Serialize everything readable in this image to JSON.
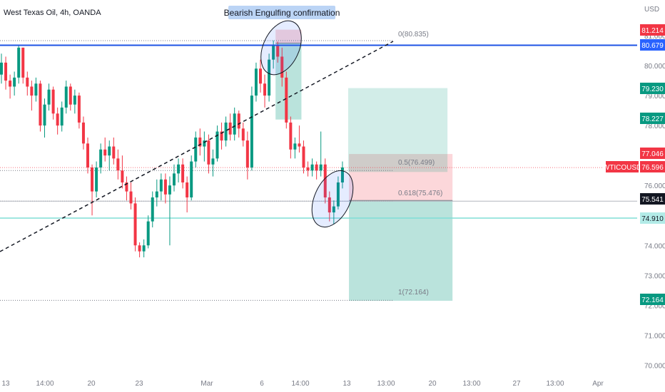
{
  "header": {
    "symbol_title": "West Texas Oil, 4h, OANDA"
  },
  "currency": "USD",
  "annotation": {
    "label": "Bearish Engulfing confirmation"
  },
  "fib_labels": {
    "level_0": "0(80.835)",
    "level_05": "0.5(76.499)",
    "level_0618": "0.618(75.476)",
    "level_1": "1(72.164)"
  },
  "price_badges": [
    {
      "text": "81.214",
      "color": "#f23645"
    },
    {
      "text": "80.679",
      "color": "#2962ff"
    },
    {
      "text": "79.230",
      "color": "#089981"
    },
    {
      "text": "78.227",
      "color": "#089981"
    },
    {
      "text": "77.046",
      "color": "#f23645"
    },
    {
      "text": "76.596",
      "color": "#f23645"
    },
    {
      "text": "75.541",
      "color": "#131722"
    },
    {
      "text": "74.910",
      "color": "#b2ebe7"
    },
    {
      "text": "72.164",
      "color": "#089981"
    }
  ],
  "symbol_badge": {
    "text": "WTICOUSD",
    "color": "#f23645"
  },
  "chart_data": {
    "type": "candlestick",
    "y_ticks": [
      "81.000",
      "80.000",
      "79.000",
      "78.000",
      "77.000",
      "76.000",
      "75.000",
      "74.000",
      "73.000",
      "72.000",
      "71.000",
      "70.000"
    ],
    "y_tick_values": [
      81,
      80,
      79,
      78,
      77,
      76,
      75,
      74,
      73,
      72,
      71,
      70
    ],
    "x_ticks": [
      "13",
      "14:00",
      "20",
      "23",
      "Mar",
      "6",
      "14:00",
      "13",
      "13:00",
      "20",
      "13:00",
      "27",
      "13:00",
      "Apr"
    ],
    "ylim": [
      69.7,
      82.0
    ],
    "colors": {
      "up": "#089981",
      "down": "#f23645",
      "horizontal_line": "#1e53e5",
      "support_line": "#80ded6"
    },
    "horizontal_lines": [
      80.679,
      74.91
    ],
    "fib_levels": [
      80.835,
      76.499,
      75.476,
      72.164
    ],
    "current_price": 76.596,
    "trendline": {
      "from_price": 73.6,
      "to_price": 80.8,
      "style": "dashed"
    },
    "candles": [
      [
        0,
        79.7,
        80.4,
        79.4,
        80.1
      ],
      [
        1,
        80.1,
        80.3,
        79.2,
        79.5
      ],
      [
        2,
        79.5,
        79.7,
        78.9,
        79.3
      ],
      [
        3,
        79.3,
        79.8,
        79.0,
        79.6
      ],
      [
        4,
        79.6,
        80.68,
        79.4,
        80.6
      ],
      [
        5,
        80.6,
        80.6,
        79.4,
        79.6
      ],
      [
        6,
        79.6,
        79.8,
        79.0,
        79.3
      ],
      [
        7,
        79.3,
        79.5,
        78.5,
        79.0
      ],
      [
        8,
        79.0,
        79.6,
        78.8,
        79.4
      ],
      [
        9,
        79.4,
        79.5,
        77.8,
        78.0
      ],
      [
        10,
        78.0,
        78.9,
        77.6,
        78.7
      ],
      [
        11,
        78.7,
        79.4,
        78.5,
        79.2
      ],
      [
        12,
        79.2,
        79.3,
        78.2,
        78.4
      ],
      [
        13,
        78.4,
        78.6,
        77.7,
        78.0
      ],
      [
        14,
        78.0,
        78.8,
        77.8,
        78.6
      ],
      [
        15,
        78.6,
        79.5,
        78.4,
        79.3
      ],
      [
        16,
        79.3,
        79.4,
        78.5,
        78.7
      ],
      [
        17,
        78.7,
        79.2,
        78.4,
        79.0
      ],
      [
        18,
        79.0,
        79.1,
        77.9,
        78.1
      ],
      [
        19,
        78.1,
        78.3,
        77.2,
        77.4
      ],
      [
        20,
        77.4,
        77.6,
        76.4,
        76.6
      ],
      [
        21,
        76.6,
        76.7,
        75.0,
        75.8
      ],
      [
        22,
        75.8,
        76.8,
        75.6,
        76.6
      ],
      [
        23,
        76.6,
        77.4,
        76.4,
        77.2
      ],
      [
        24,
        77.2,
        77.6,
        76.8,
        77.0
      ],
      [
        25,
        77.0,
        77.5,
        76.5,
        77.3
      ],
      [
        26,
        77.3,
        77.6,
        76.7,
        76.9
      ],
      [
        27,
        76.9,
        77.2,
        76.2,
        76.5
      ],
      [
        28,
        76.5,
        77.0,
        75.9,
        76.1
      ],
      [
        29,
        76.1,
        76.3,
        75.5,
        75.8
      ],
      [
        30,
        75.8,
        76.1,
        75.2,
        75.4
      ],
      [
        31,
        75.4,
        75.6,
        73.8,
        74.0
      ],
      [
        32,
        74.0,
        74.1,
        73.6,
        73.8
      ],
      [
        33,
        73.8,
        74.2,
        73.6,
        74.0
      ],
      [
        34,
        74.0,
        75.0,
        73.9,
        74.8
      ],
      [
        35,
        74.8,
        75.8,
        74.6,
        75.6
      ],
      [
        36,
        75.6,
        76.2,
        75.3,
        75.8
      ],
      [
        37,
        75.8,
        76.4,
        75.5,
        76.2
      ],
      [
        38,
        76.2,
        76.4,
        75.4,
        75.7
      ],
      [
        39,
        75.7,
        76.3,
        74.0,
        76.0
      ],
      [
        40,
        76.0,
        76.7,
        75.8,
        76.4
      ],
      [
        41,
        76.4,
        76.9,
        76.1,
        76.7
      ],
      [
        42,
        76.7,
        76.9,
        75.9,
        76.1
      ],
      [
        43,
        76.1,
        76.3,
        75.1,
        75.6
      ],
      [
        44,
        75.6,
        77.0,
        75.5,
        76.8
      ],
      [
        45,
        76.8,
        77.8,
        76.6,
        77.6
      ],
      [
        46,
        77.6,
        77.9,
        77.0,
        77.3
      ],
      [
        47,
        77.3,
        77.8,
        76.8,
        77.5
      ],
      [
        48,
        77.5,
        77.7,
        76.4,
        76.7
      ],
      [
        49,
        76.7,
        77.2,
        76.3,
        76.9
      ],
      [
        50,
        76.9,
        78.0,
        76.8,
        77.8
      ],
      [
        51,
        77.8,
        78.1,
        77.2,
        77.5
      ],
      [
        52,
        77.5,
        78.3,
        77.3,
        78.1
      ],
      [
        53,
        78.1,
        78.4,
        77.5,
        77.7
      ],
      [
        54,
        77.7,
        78.6,
        77.5,
        78.4
      ],
      [
        55,
        78.4,
        78.5,
        77.6,
        77.9
      ],
      [
        56,
        77.9,
        78.1,
        77.3,
        77.5
      ],
      [
        57,
        77.5,
        77.8,
        76.2,
        76.6
      ],
      [
        58,
        76.6,
        79.3,
        76.5,
        79.0
      ],
      [
        59,
        79.0,
        80.1,
        78.8,
        79.9
      ],
      [
        60,
        79.9,
        80.2,
        79.1,
        79.4
      ],
      [
        61,
        79.4,
        79.7,
        78.6,
        79.0
      ],
      [
        62,
        79.0,
        80.4,
        78.8,
        80.2
      ],
      [
        63,
        80.2,
        80.84,
        79.9,
        80.7
      ],
      [
        64,
        80.7,
        80.8,
        80.1,
        80.3
      ],
      [
        65,
        80.3,
        80.6,
        79.3,
        79.6
      ],
      [
        66,
        79.6,
        79.8,
        77.9,
        78.1
      ],
      [
        67,
        78.1,
        78.3,
        76.9,
        77.2
      ],
      [
        68,
        77.2,
        77.6,
        76.9,
        77.4
      ],
      [
        69,
        77.4,
        78.0,
        77.1,
        77.3
      ],
      [
        70,
        77.3,
        77.5,
        76.4,
        76.6
      ],
      [
        71,
        76.6,
        76.8,
        76.3,
        76.5
      ],
      [
        72,
        76.5,
        76.9,
        76.3,
        76.7
      ],
      [
        73,
        76.7,
        76.8,
        76.2,
        76.5
      ],
      [
        74,
        76.5,
        77.8,
        76.3,
        76.7
      ],
      [
        75,
        76.7,
        76.9,
        75.4,
        75.6
      ],
      [
        76,
        75.6,
        75.8,
        74.8,
        75.1
      ],
      [
        77,
        75.1,
        75.5,
        74.7,
        75.3
      ],
      [
        78,
        75.3,
        76.3,
        75.2,
        76.1
      ],
      [
        79,
        76.1,
        76.8,
        75.9,
        76.6
      ]
    ],
    "short_positions": [
      {
        "entry": 80.75,
        "stop": 81.2,
        "target": 78.2,
        "start_bar": 64,
        "end_bar": 69
      },
      {
        "entry": 75.5,
        "stop": 77.05,
        "target": 72.15,
        "start_bar": 81,
        "end_bar": 104
      }
    ],
    "long_position": {
      "entry": 76.45,
      "target": 79.25,
      "start_bar": 80,
      "end_bar": 103
    }
  }
}
